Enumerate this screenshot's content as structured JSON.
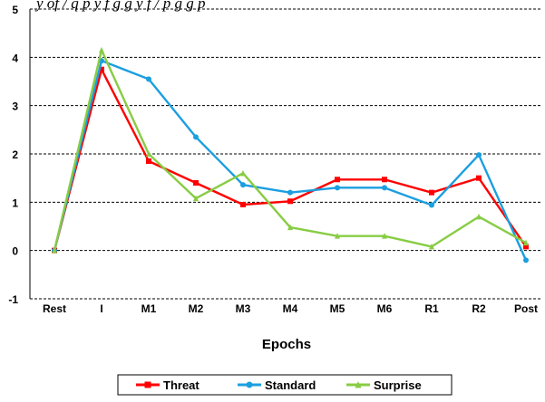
{
  "top_caption": "y of /  q  p  y  f  g  g          y f  /  p  g  g  p",
  "chart_data": {
    "type": "line",
    "title": "",
    "xlabel": "Epochs",
    "ylabel": "",
    "categories": [
      "Rest",
      "I",
      "M1",
      "M2",
      "M3",
      "M4",
      "M5",
      "M6",
      "R1",
      "R2",
      "Post"
    ],
    "ylim": [
      -1,
      5
    ],
    "yticks": [
      "5",
      "4",
      "3",
      "2",
      "1",
      "0",
      "-1"
    ],
    "grid": "horizontal dashed",
    "legend_placement": "bottom-center",
    "series": [
      {
        "name": "Threat",
        "color": "#ff0000",
        "marker": "square",
        "values": [
          0.0,
          3.75,
          1.85,
          1.4,
          0.95,
          1.02,
          1.47,
          1.47,
          1.2,
          1.5,
          0.08
        ]
      },
      {
        "name": "Standard",
        "color": "#1b9fe0",
        "marker": "circle",
        "values": [
          0.0,
          3.93,
          3.55,
          2.35,
          1.36,
          1.2,
          1.3,
          1.3,
          0.94,
          1.98,
          -0.2
        ]
      },
      {
        "name": "Surprise",
        "color": "#88cc44",
        "marker": "triangle",
        "values": [
          0.0,
          4.15,
          2.0,
          1.08,
          1.6,
          0.48,
          0.3,
          0.3,
          0.08,
          0.7,
          0.16
        ]
      }
    ]
  }
}
